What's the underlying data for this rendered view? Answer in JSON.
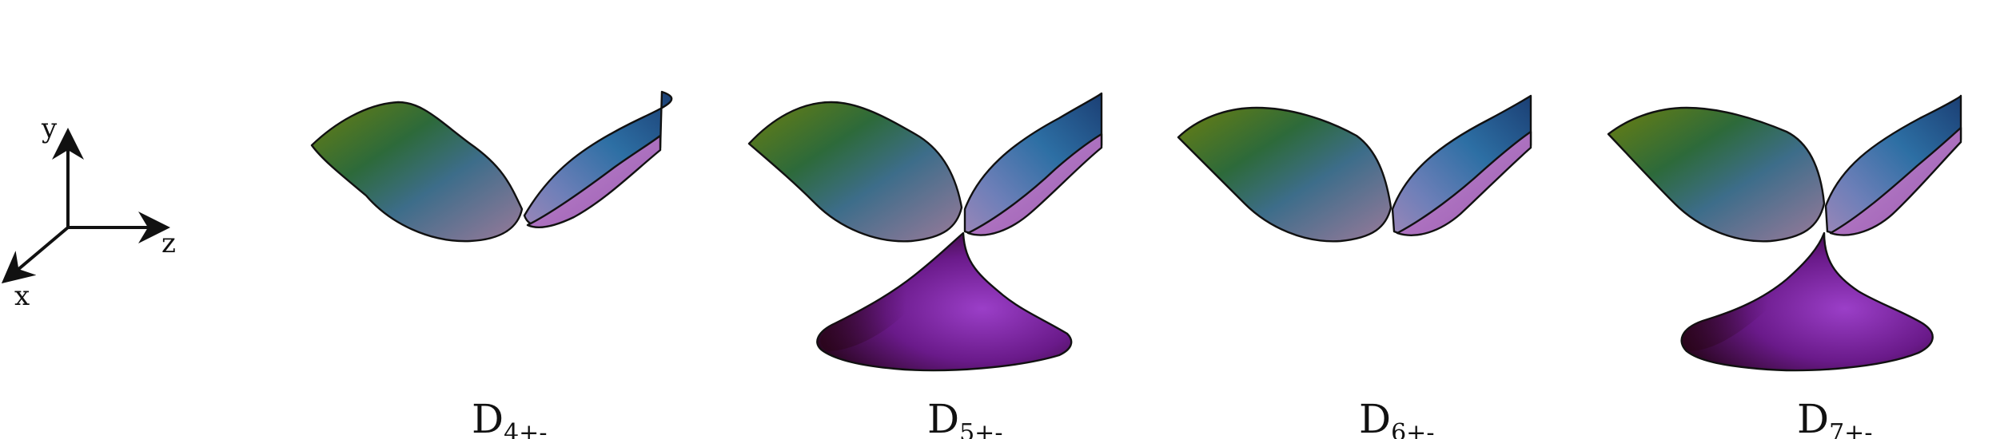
{
  "axes": {
    "y_label": "y",
    "z_label": "z",
    "x_label": "x"
  },
  "panels": [
    {
      "letter": "D",
      "subscript": "4+-",
      "has_lower_lobe": false
    },
    {
      "letter": "D",
      "subscript": "5+-",
      "has_lower_lobe": true
    },
    {
      "letter": "D",
      "subscript": "6+-",
      "has_lower_lobe": false
    },
    {
      "letter": "D",
      "subscript": "7+-",
      "has_lower_lobe": true
    }
  ],
  "colors": {
    "left_leaf_top": "#5a7a1a",
    "left_leaf_bottom": "#3b6fa0",
    "right_leaf_top": "#1d4f85",
    "right_leaf_band": "#b07ac0",
    "lower_lobe_dark": "#3a0a2a",
    "lower_lobe_light": "#8a20b8"
  }
}
